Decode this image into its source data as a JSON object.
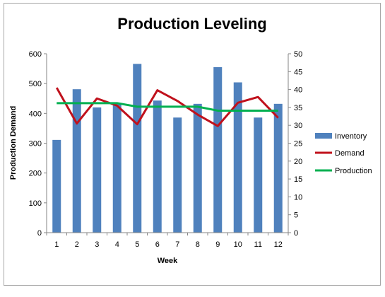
{
  "chart_data": {
    "type": "bar",
    "title": "Production Leveling",
    "xlabel": "Week",
    "ylabel": "Production Demand",
    "categories": [
      "1",
      "2",
      "3",
      "4",
      "5",
      "6",
      "7",
      "8",
      "9",
      "10",
      "11",
      "12"
    ],
    "ylim": [
      0,
      600
    ],
    "y_ticks": [
      "0",
      "100",
      "200",
      "300",
      "400",
      "500",
      "600"
    ],
    "y2lim": [
      0,
      50
    ],
    "y2_ticks": [
      "0",
      "5",
      "10",
      "15",
      "20",
      "25",
      "30",
      "35",
      "40",
      "45",
      "50"
    ],
    "grid": false,
    "legend_position": "right",
    "series": [
      {
        "name": "Inventory",
        "type": "bar",
        "axis": "left",
        "color": "#4f81bd",
        "values": [
          311,
          481,
          420,
          432,
          566,
          443,
          386,
          432,
          555,
          504,
          386,
          432
        ]
      },
      {
        "name": "Demand",
        "type": "line",
        "axis": "right",
        "color": "#c0111c",
        "values": [
          40.5,
          30.5,
          37.5,
          35.5,
          30.3,
          39.8,
          36.8,
          33.0,
          29.8,
          36.3,
          37.9,
          32.1
        ]
      },
      {
        "name": "Production",
        "type": "line",
        "axis": "right",
        "color": "#00b050",
        "values": [
          36.2,
          36.2,
          36.2,
          36.2,
          35.2,
          35.2,
          35.2,
          35.2,
          34.1,
          34.1,
          34.1,
          34.1
        ]
      }
    ]
  }
}
